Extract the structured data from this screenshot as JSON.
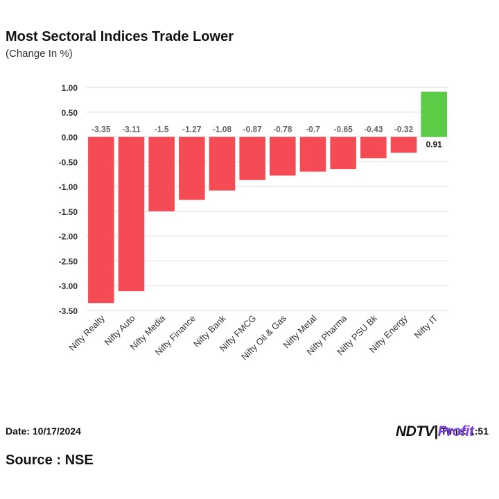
{
  "header": {
    "title": "Most Sectoral Indices Trade Lower",
    "subtitle": "(Change In %)"
  },
  "footer": {
    "date": "Date: 10/17/2024",
    "time": "Time: 1:51",
    "source": "Source : NSE",
    "logo_part1": "NDTV",
    "logo_part2": "Profit"
  },
  "colors": {
    "negative": "#f44b55",
    "positive": "#5ccb45",
    "grid": "#dddddd",
    "logo_accent": "#7b3fe4"
  },
  "chart_data": {
    "type": "bar",
    "categories": [
      "Nifty Realty",
      "Nifty Auto",
      "Nifty Media",
      "Nifty Finance",
      "Nifty Bank",
      "Nifty FMCG",
      "Nifty Oil & Gas",
      "Nifty Metal",
      "Nifty Pharma",
      "Nifty PSU Bk",
      "Nifty Energy",
      "Nifty IT"
    ],
    "values": [
      -3.35,
      -3.11,
      -1.5,
      -1.27,
      -1.08,
      -0.87,
      -0.78,
      -0.7,
      -0.65,
      -0.43,
      -0.32,
      0.91
    ],
    "value_labels": [
      "-3.35",
      "-3.11",
      "-1.5",
      "-1.27",
      "-1.08",
      "-0.87",
      "-0.78",
      "-0.7",
      "-0.65",
      "-0.43",
      "-0.32",
      "0.91"
    ],
    "yticks": [
      "1.00",
      "0.50",
      "0.00",
      "-0.50",
      "-1.00",
      "-1.50",
      "-2.00",
      "-2.50",
      "-3.00",
      "-3.50"
    ],
    "ylim": [
      -3.5,
      1.0
    ],
    "grid": true,
    "legend": "none"
  }
}
